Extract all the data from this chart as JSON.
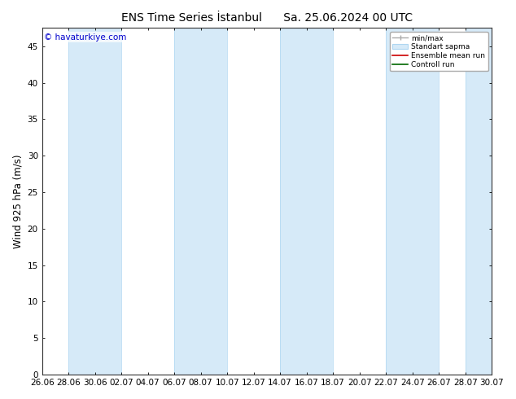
{
  "title": "ENS Time Series İstanbul      Sa. 25.06.2024 00 UTC",
  "ylabel": "Wind 925 hPa (m/s)",
  "watermark": "© havaturkiye.com",
  "ylim": [
    0,
    47.5
  ],
  "yticks": [
    0,
    5,
    10,
    15,
    20,
    25,
    30,
    35,
    40,
    45
  ],
  "x_labels": [
    "26.06",
    "28.06",
    "30.06",
    "02.07",
    "04.07",
    "06.07",
    "08.07",
    "10.07",
    "12.07",
    "14.07",
    "16.07",
    "18.07",
    "20.07",
    "22.07",
    "24.07",
    "26.07",
    "28.07",
    "30.07"
  ],
  "band_color": "#d6eaf8",
  "band_edge_color": "#aed6f1",
  "ensemble_mean_color": "#cc0000",
  "control_run_color": "#006600",
  "minmax_color": "#aaaaaa",
  "legend_items": [
    "min/max",
    "Standart sapma",
    "Ensemble mean run",
    "Controll run"
  ],
  "background_color": "#ffffff",
  "title_fontsize": 10,
  "label_fontsize": 8.5,
  "tick_fontsize": 7.5,
  "watermark_color": "#0000cc",
  "shaded_indices": [
    1,
    2,
    5,
    6,
    9,
    10,
    13,
    14,
    15,
    16,
    17
  ]
}
